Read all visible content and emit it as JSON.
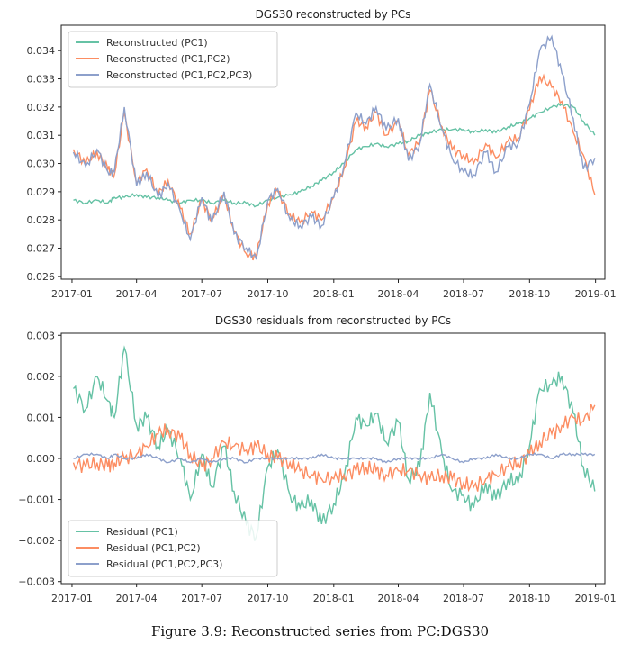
{
  "caption": "Figure 3.9: Reconstructed series from PC:DGS30",
  "colors": {
    "pc1": "#66c2a5",
    "pc12": "#fc8d62",
    "pc123": "#8da0cb"
  },
  "chart_data": [
    {
      "type": "line",
      "title": "DGS30 reconstructed by PCs",
      "xlabel": "",
      "ylabel": "",
      "x_tick_labels": [
        "2017-01",
        "2017-04",
        "2017-07",
        "2017-10",
        "2018-01",
        "2018-04",
        "2018-07",
        "2018-10",
        "2019-01"
      ],
      "y_ticks": [
        0.026,
        0.027,
        0.028,
        0.029,
        0.03,
        0.031,
        0.032,
        0.033,
        0.034
      ],
      "y_tick_labels": [
        "0.026",
        "0.027",
        "0.028",
        "0.029",
        "0.030",
        "0.031",
        "0.032",
        "0.033",
        "0.034"
      ],
      "ylim": [
        0.0259,
        0.0349
      ],
      "xlim": [
        "2016-12-17",
        "2019-01-14"
      ],
      "grid": false,
      "legend_position": "upper-left",
      "series": [
        {
          "name": "Reconstructed (PC1)",
          "color": "#66c2a5",
          "x": [
            "2017-01-03",
            "2017-01-20",
            "2017-02-05",
            "2017-02-20",
            "2017-03-01",
            "2017-03-15",
            "2017-04-01",
            "2017-04-15",
            "2017-05-01",
            "2017-05-15",
            "2017-06-01",
            "2017-06-15",
            "2017-07-01",
            "2017-07-15",
            "2017-08-01",
            "2017-08-15",
            "2017-09-01",
            "2017-09-15",
            "2017-10-01",
            "2017-10-15",
            "2017-11-01",
            "2017-11-15",
            "2017-12-01",
            "2017-12-15",
            "2018-01-01",
            "2018-01-15",
            "2018-02-01",
            "2018-02-15",
            "2018-03-01",
            "2018-03-15",
            "2018-04-01",
            "2018-04-15",
            "2018-05-01",
            "2018-05-15",
            "2018-06-01",
            "2018-06-15",
            "2018-07-01",
            "2018-07-15",
            "2018-08-01",
            "2018-08-15",
            "2018-09-01",
            "2018-09-15",
            "2018-10-01",
            "2018-10-15",
            "2018-11-01",
            "2018-11-15",
            "2018-12-01",
            "2018-12-15",
            "2018-12-31"
          ],
          "values": [
            0.0287,
            0.0286,
            0.0287,
            0.0286,
            0.0288,
            0.0288,
            0.0289,
            0.0288,
            0.0288,
            0.0287,
            0.0286,
            0.0287,
            0.0287,
            0.0286,
            0.0287,
            0.0286,
            0.0286,
            0.0285,
            0.0287,
            0.0288,
            0.0289,
            0.029,
            0.0292,
            0.0294,
            0.0297,
            0.03,
            0.0305,
            0.0306,
            0.0307,
            0.0306,
            0.0307,
            0.0308,
            0.031,
            0.0311,
            0.0312,
            0.0312,
            0.0312,
            0.0311,
            0.0312,
            0.0311,
            0.0313,
            0.0314,
            0.0316,
            0.0318,
            0.032,
            0.0321,
            0.032,
            0.0315,
            0.031
          ]
        },
        {
          "name": "Reconstructed (PC1,PC2)",
          "color": "#fc8d62",
          "x": [
            "2017-01-03",
            "2017-01-20",
            "2017-02-05",
            "2017-02-20",
            "2017-03-01",
            "2017-03-15",
            "2017-04-01",
            "2017-04-15",
            "2017-05-01",
            "2017-05-15",
            "2017-06-01",
            "2017-06-15",
            "2017-07-01",
            "2017-07-15",
            "2017-08-01",
            "2017-08-15",
            "2017-09-01",
            "2017-09-15",
            "2017-10-01",
            "2017-10-15",
            "2017-11-01",
            "2017-11-15",
            "2017-12-01",
            "2017-12-15",
            "2018-01-01",
            "2018-01-15",
            "2018-02-01",
            "2018-02-15",
            "2018-03-01",
            "2018-03-15",
            "2018-04-01",
            "2018-04-15",
            "2018-05-01",
            "2018-05-15",
            "2018-06-01",
            "2018-06-15",
            "2018-07-01",
            "2018-07-15",
            "2018-08-01",
            "2018-08-15",
            "2018-09-01",
            "2018-09-15",
            "2018-10-01",
            "2018-10-15",
            "2018-11-01",
            "2018-11-15",
            "2018-12-01",
            "2018-12-15",
            "2018-12-31"
          ],
          "values": [
            0.0305,
            0.03,
            0.0304,
            0.0298,
            0.0296,
            0.0318,
            0.0293,
            0.0298,
            0.0289,
            0.0294,
            0.0284,
            0.0275,
            0.0287,
            0.028,
            0.0289,
            0.0276,
            0.0268,
            0.0267,
            0.0286,
            0.029,
            0.0282,
            0.0279,
            0.0283,
            0.028,
            0.0288,
            0.0298,
            0.0315,
            0.0313,
            0.0318,
            0.031,
            0.0315,
            0.0303,
            0.0308,
            0.0326,
            0.0313,
            0.0305,
            0.0303,
            0.03,
            0.0307,
            0.0302,
            0.0308,
            0.0309,
            0.0319,
            0.0331,
            0.0327,
            0.0322,
            0.0311,
            0.0303,
            0.0289
          ]
        },
        {
          "name": "Reconstructed (PC1,PC2,PC3)",
          "color": "#8da0cb",
          "x": [
            "2017-01-03",
            "2017-01-20",
            "2017-02-05",
            "2017-02-20",
            "2017-03-01",
            "2017-03-15",
            "2017-04-01",
            "2017-04-15",
            "2017-05-01",
            "2017-05-15",
            "2017-06-01",
            "2017-06-15",
            "2017-07-01",
            "2017-07-15",
            "2017-08-01",
            "2017-08-15",
            "2017-09-01",
            "2017-09-15",
            "2017-10-01",
            "2017-10-15",
            "2017-11-01",
            "2017-11-15",
            "2017-12-01",
            "2017-12-15",
            "2018-01-01",
            "2018-01-15",
            "2018-02-01",
            "2018-02-15",
            "2018-03-01",
            "2018-03-15",
            "2018-04-01",
            "2018-04-15",
            "2018-05-01",
            "2018-05-15",
            "2018-06-01",
            "2018-06-15",
            "2018-07-01",
            "2018-07-15",
            "2018-08-01",
            "2018-08-15",
            "2018-09-01",
            "2018-09-15",
            "2018-10-01",
            "2018-10-15",
            "2018-11-01",
            "2018-11-15",
            "2018-12-01",
            "2018-12-15",
            "2018-12-31"
          ],
          "values": [
            0.0304,
            0.0299,
            0.0305,
            0.0297,
            0.0297,
            0.032,
            0.0292,
            0.0297,
            0.0288,
            0.0293,
            0.0283,
            0.0273,
            0.0288,
            0.0279,
            0.029,
            0.0275,
            0.027,
            0.0266,
            0.0287,
            0.0291,
            0.028,
            0.0278,
            0.0281,
            0.0278,
            0.0288,
            0.0299,
            0.0318,
            0.0314,
            0.032,
            0.0312,
            0.0316,
            0.0301,
            0.0307,
            0.0328,
            0.0312,
            0.0302,
            0.0297,
            0.0296,
            0.0304,
            0.0297,
            0.0306,
            0.0307,
            0.0321,
            0.034,
            0.0345,
            0.0332,
            0.0316,
            0.0298,
            0.0302
          ]
        }
      ]
    },
    {
      "type": "line",
      "title": "DGS30 residuals from reconstructed by PCs",
      "xlabel": "",
      "ylabel": "",
      "x_tick_labels": [
        "2017-01",
        "2017-04",
        "2017-07",
        "2017-10",
        "2018-01",
        "2018-04",
        "2018-07",
        "2018-10",
        "2019-01"
      ],
      "y_ticks": [
        -0.003,
        -0.002,
        -0.001,
        0.0,
        0.001,
        0.002,
        0.003
      ],
      "y_tick_labels": [
        "−0.003",
        "−0.002",
        "−0.001",
        "0.000",
        "0.001",
        "0.002",
        "0.003"
      ],
      "ylim": [
        -0.00305,
        0.00305
      ],
      "xlim": [
        "2016-12-17",
        "2019-01-14"
      ],
      "grid": false,
      "legend_position": "lower-left",
      "series": [
        {
          "name": "Residual (PC1)",
          "color": "#66c2a5",
          "x": [
            "2017-01-03",
            "2017-01-20",
            "2017-02-05",
            "2017-02-20",
            "2017-03-01",
            "2017-03-15",
            "2017-04-01",
            "2017-04-15",
            "2017-05-01",
            "2017-05-15",
            "2017-06-01",
            "2017-06-15",
            "2017-07-01",
            "2017-07-15",
            "2017-08-01",
            "2017-08-15",
            "2017-09-01",
            "2017-09-15",
            "2017-10-01",
            "2017-10-15",
            "2017-11-01",
            "2017-11-15",
            "2017-12-01",
            "2017-12-15",
            "2018-01-01",
            "2018-01-15",
            "2018-02-01",
            "2018-02-15",
            "2018-03-01",
            "2018-03-15",
            "2018-04-01",
            "2018-04-15",
            "2018-05-01",
            "2018-05-15",
            "2018-06-01",
            "2018-06-15",
            "2018-07-01",
            "2018-07-15",
            "2018-08-01",
            "2018-08-15",
            "2018-09-01",
            "2018-09-15",
            "2018-10-01",
            "2018-10-15",
            "2018-11-01",
            "2018-11-15",
            "2018-12-01",
            "2018-12-15",
            "2018-12-31"
          ],
          "values": [
            0.0017,
            0.0012,
            0.002,
            0.0014,
            0.001,
            0.0027,
            0.0008,
            0.001,
            0.0003,
            0.0007,
            0.0,
            -0.001,
            0.0001,
            -0.0007,
            0.0003,
            -0.0008,
            -0.0016,
            -0.0019,
            -0.0002,
            0.0002,
            -0.0009,
            -0.0012,
            -0.001,
            -0.0016,
            -0.0011,
            -0.0005,
            0.001,
            0.0008,
            0.0011,
            0.0004,
            0.0009,
            -0.0005,
            -0.0002,
            0.0016,
            0.0001,
            -0.0008,
            -0.0009,
            -0.0012,
            -0.0006,
            -0.001,
            -0.0005,
            -0.0006,
            0.0003,
            0.0017,
            0.0018,
            0.002,
            0.0011,
            -0.0002,
            -0.0008
          ]
        },
        {
          "name": "Residual (PC1,PC2)",
          "color": "#fc8d62",
          "x": [
            "2017-01-03",
            "2017-01-20",
            "2017-02-05",
            "2017-02-20",
            "2017-03-01",
            "2017-03-15",
            "2017-04-01",
            "2017-04-15",
            "2017-05-01",
            "2017-05-15",
            "2017-06-01",
            "2017-06-15",
            "2017-07-01",
            "2017-07-15",
            "2017-08-01",
            "2017-08-15",
            "2017-09-01",
            "2017-09-15",
            "2017-10-01",
            "2017-10-15",
            "2017-11-01",
            "2017-11-15",
            "2017-12-01",
            "2017-12-15",
            "2018-01-01",
            "2018-01-15",
            "2018-02-01",
            "2018-02-15",
            "2018-03-01",
            "2018-03-15",
            "2018-04-01",
            "2018-04-15",
            "2018-05-01",
            "2018-05-15",
            "2018-06-01",
            "2018-06-15",
            "2018-07-01",
            "2018-07-15",
            "2018-08-01",
            "2018-08-15",
            "2018-09-01",
            "2018-09-15",
            "2018-10-01",
            "2018-10-15",
            "2018-11-01",
            "2018-11-15",
            "2018-12-01",
            "2018-12-15",
            "2018-12-31"
          ],
          "values": [
            -0.0001,
            -0.0002,
            -0.0001,
            -0.0002,
            -0.0001,
            0.0,
            0.0001,
            0.0003,
            0.0006,
            0.0007,
            0.0005,
            0.0001,
            -0.0002,
            0.0,
            0.0004,
            0.0003,
            0.0002,
            0.0003,
            0.0001,
            0.0,
            -0.0001,
            -0.0003,
            -0.0004,
            -0.0005,
            -0.0005,
            -0.0004,
            -0.0003,
            -0.0002,
            -0.0003,
            -0.0004,
            -0.0003,
            -0.0003,
            -0.0004,
            -0.0005,
            -0.0004,
            -0.0005,
            -0.0006,
            -0.0007,
            -0.0005,
            -0.0004,
            -0.0002,
            -0.0001,
            0.0001,
            0.0004,
            0.0006,
            0.0008,
            0.001,
            0.0009,
            0.0013
          ]
        },
        {
          "name": "Residual (PC1,PC2,PC3)",
          "color": "#8da0cb",
          "x": [
            "2017-01-03",
            "2017-01-20",
            "2017-02-05",
            "2017-02-20",
            "2017-03-01",
            "2017-03-15",
            "2017-04-01",
            "2017-04-15",
            "2017-05-01",
            "2017-05-15",
            "2017-06-01",
            "2017-06-15",
            "2017-07-01",
            "2017-07-15",
            "2017-08-01",
            "2017-08-15",
            "2017-09-01",
            "2017-09-15",
            "2017-10-01",
            "2017-10-15",
            "2017-11-01",
            "2017-11-15",
            "2017-12-01",
            "2017-12-15",
            "2018-01-01",
            "2018-01-15",
            "2018-02-01",
            "2018-02-15",
            "2018-03-01",
            "2018-03-15",
            "2018-04-01",
            "2018-04-15",
            "2018-05-01",
            "2018-05-15",
            "2018-06-01",
            "2018-06-15",
            "2018-07-01",
            "2018-07-15",
            "2018-08-01",
            "2018-08-15",
            "2018-09-01",
            "2018-09-15",
            "2018-10-01",
            "2018-10-15",
            "2018-11-01",
            "2018-11-15",
            "2018-12-01",
            "2018-12-15",
            "2018-12-31"
          ],
          "values": [
            0.0,
            0.0001,
            0.0001,
            0.0,
            0.0001,
            0.0,
            0.0,
            0.0001,
            0.0,
            -0.0001,
            0.0,
            -0.0001,
            0.0,
            -0.0001,
            0.0,
            0.0,
            -0.0001,
            0.0,
            0.0,
            0.0,
            0.0,
            0.0,
            0.0,
            0.0001,
            0.0,
            0.0,
            0.0,
            0.0,
            0.0,
            -0.0001,
            0.0,
            0.0,
            0.0,
            0.0,
            0.0001,
            0.0,
            -0.0001,
            0.0,
            0.0,
            0.0001,
            0.0,
            0.0,
            0.0001,
            0.0001,
            0.0,
            0.0001,
            0.0001,
            0.0001,
            0.0001
          ]
        }
      ]
    }
  ]
}
